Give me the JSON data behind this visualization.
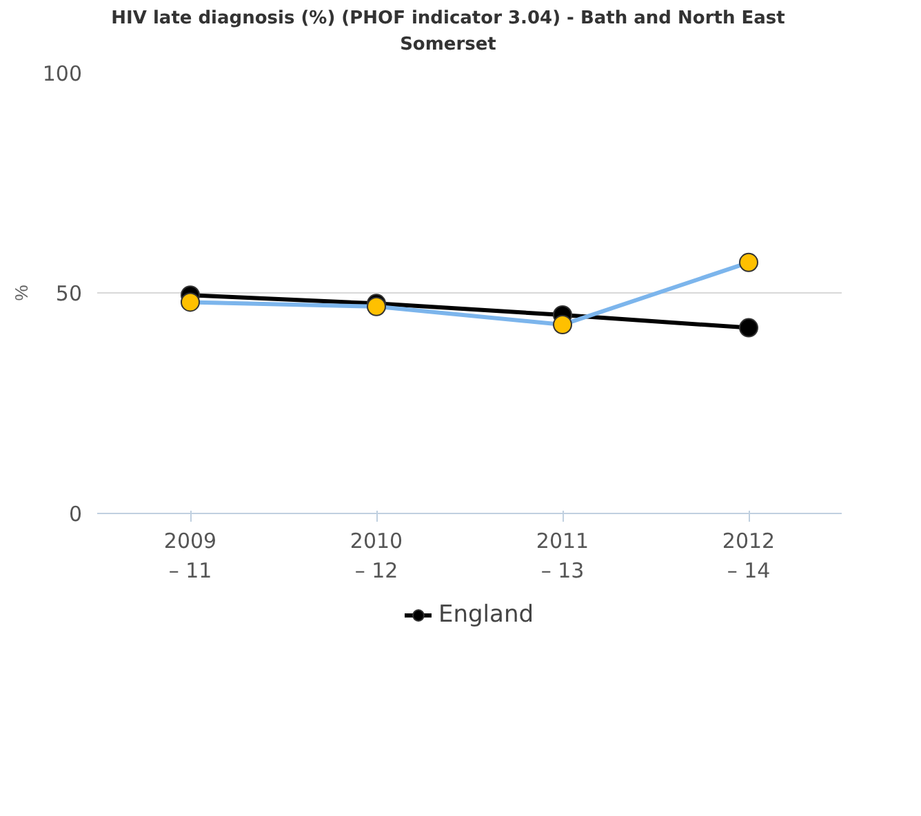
{
  "chart_data": {
    "type": "line",
    "title": "HIV late diagnosis (%) (PHOF indicator 3.04) - Bath and North East\nSomerset",
    "ylabel": "%",
    "categories": [
      "2009\n– 11",
      "2010\n– 12",
      "2011\n– 13",
      "2012\n– 14"
    ],
    "series": [
      {
        "name": "England",
        "color": "#000000",
        "values": [
          49.5,
          47.6,
          45.0,
          42.1
        ]
      },
      {
        "color": "#7cb5ec",
        "colors": [
          "#ffc000",
          "#ffc000",
          "#ffc000",
          "#ffc000"
        ],
        "values": [
          47.9,
          46.9,
          42.8,
          56.9
        ]
      }
    ],
    "ylim": [
      0,
      100
    ],
    "yticks": [
      0,
      50,
      100
    ],
    "grid": "y",
    "legend": "bottom",
    "marker": "circle",
    "line_style": "solid"
  }
}
